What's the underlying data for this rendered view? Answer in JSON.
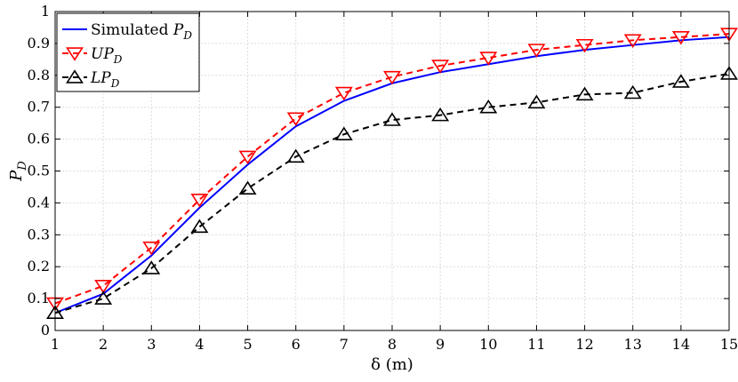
{
  "chart_data": {
    "type": "line",
    "xlabel": "δ (m)",
    "ylabel": "P_D",
    "xlim": [
      1,
      15
    ],
    "ylim": [
      0,
      1
    ],
    "xticks": [
      1,
      2,
      3,
      4,
      5,
      6,
      7,
      8,
      9,
      10,
      11,
      12,
      13,
      14,
      15
    ],
    "yticks": [
      0,
      0.1,
      0.2,
      0.3,
      0.4,
      0.5,
      0.6,
      0.7,
      0.8,
      0.9,
      1
    ],
    "grid": true,
    "legend_position": "top-left",
    "x": [
      1,
      2,
      3,
      4,
      5,
      6,
      7,
      8,
      9,
      10,
      11,
      12,
      13,
      14,
      15
    ],
    "series": [
      {
        "name": "Simulated P_D",
        "legend_prefix": "Simulated ",
        "legend_symbol": "P",
        "legend_sub": "D",
        "color": "#0000ff",
        "style": "solid",
        "marker": "none",
        "values": [
          0.055,
          0.115,
          0.235,
          0.385,
          0.52,
          0.64,
          0.72,
          0.775,
          0.81,
          0.835,
          0.86,
          0.88,
          0.895,
          0.91,
          0.92
        ]
      },
      {
        "name": "UP_D",
        "legend_prefix": "",
        "legend_symbol": "UP",
        "legend_sub": "D",
        "color": "#ff0000",
        "style": "dashed",
        "marker": "triangle-down",
        "values": [
          0.085,
          0.14,
          0.26,
          0.41,
          0.545,
          0.665,
          0.745,
          0.795,
          0.83,
          0.855,
          0.88,
          0.895,
          0.91,
          0.92,
          0.93
        ]
      },
      {
        "name": "LP_D",
        "legend_prefix": "",
        "legend_symbol": "LP",
        "legend_sub": "D",
        "color": "#000000",
        "style": "dashed",
        "marker": "triangle-up",
        "values": [
          0.055,
          0.1,
          0.195,
          0.325,
          0.445,
          0.545,
          0.615,
          0.66,
          0.675,
          0.7,
          0.715,
          0.74,
          0.745,
          0.78,
          0.805
        ]
      }
    ]
  }
}
